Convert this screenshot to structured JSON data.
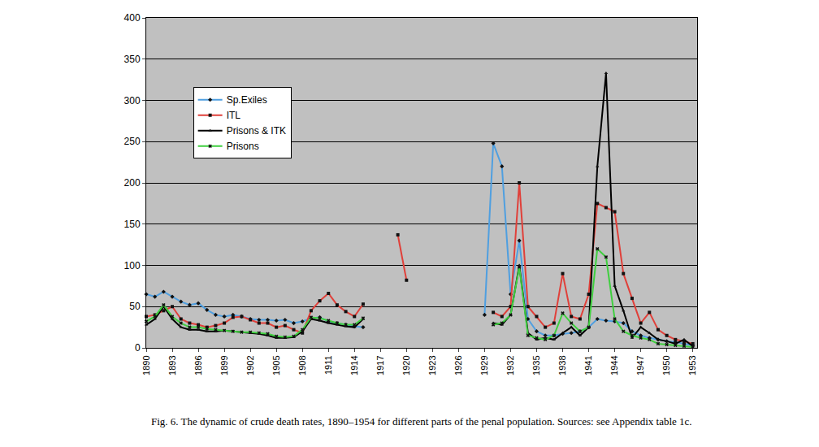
{
  "chart_data": {
    "type": "line",
    "title": "Fig. 6. The dynamic of crude death rates, 1890–1954 for different parts of the penal population. Sources: see Appendix table 1c.",
    "x": [
      1890,
      1891,
      1892,
      1893,
      1894,
      1895,
      1896,
      1897,
      1898,
      1899,
      1900,
      1901,
      1902,
      1903,
      1904,
      1905,
      1906,
      1907,
      1908,
      1909,
      1910,
      1911,
      1912,
      1913,
      1914,
      1915,
      1916,
      1917,
      1918,
      1919,
      1920,
      1921,
      1922,
      1923,
      1924,
      1925,
      1926,
      1927,
      1928,
      1929,
      1930,
      1931,
      1932,
      1933,
      1934,
      1935,
      1936,
      1937,
      1938,
      1939,
      1940,
      1941,
      1942,
      1943,
      1944,
      1945,
      1946,
      1947,
      1948,
      1949,
      1950,
      1951,
      1952,
      1953
    ],
    "series": [
      {
        "name": "Sp.Exiles",
        "color": "#4f9fe0",
        "marker": "diamond",
        "values": [
          65,
          62,
          68,
          62,
          56,
          52,
          54,
          46,
          40,
          38,
          40,
          38,
          35,
          34,
          34,
          33,
          34,
          30,
          32,
          36,
          37,
          32,
          30,
          28,
          26,
          25,
          null,
          null,
          null,
          null,
          null,
          null,
          null,
          null,
          null,
          null,
          null,
          null,
          null,
          40,
          248,
          220,
          65,
          130,
          35,
          20,
          15,
          15,
          17,
          18,
          20,
          25,
          35,
          33,
          32,
          30,
          20,
          15,
          12,
          10,
          8,
          7,
          5,
          3
        ]
      },
      {
        "name": "ITL",
        "color": "#e0403a",
        "marker": "square",
        "values": [
          38,
          40,
          45,
          50,
          35,
          30,
          28,
          25,
          27,
          30,
          37,
          38,
          34,
          30,
          30,
          25,
          27,
          22,
          18,
          45,
          57,
          66,
          52,
          44,
          38,
          53,
          null,
          null,
          null,
          137,
          82,
          null,
          null,
          null,
          null,
          null,
          null,
          null,
          null,
          null,
          43,
          38,
          50,
          200,
          50,
          38,
          25,
          30,
          90,
          38,
          35,
          65,
          175,
          170,
          165,
          90,
          60,
          30,
          43,
          22,
          15,
          10,
          8,
          5
        ]
      },
      {
        "name": "Prisons & ITK",
        "color": "#000000",
        "marker": "triangle-up",
        "values": [
          28,
          35,
          50,
          35,
          25,
          22,
          22,
          20,
          20,
          21,
          20,
          19,
          18,
          17,
          15,
          12,
          12,
          13,
          20,
          35,
          33,
          30,
          28,
          26,
          25,
          35,
          null,
          null,
          null,
          null,
          null,
          null,
          null,
          null,
          null,
          null,
          null,
          null,
          null,
          null,
          30,
          28,
          40,
          100,
          18,
          10,
          12,
          10,
          18,
          25,
          15,
          25,
          220,
          333,
          75,
          45,
          12,
          25,
          18,
          10,
          8,
          5,
          10,
          2
        ]
      },
      {
        "name": "Prisons",
        "color": "#3fcf3f",
        "marker": "x",
        "values": [
          32,
          38,
          52,
          38,
          30,
          25,
          25,
          23,
          22,
          21,
          20,
          19,
          19,
          18,
          17,
          14,
          13,
          14,
          22,
          37,
          36,
          33,
          30,
          28,
          28,
          36,
          null,
          null,
          null,
          null,
          null,
          null,
          null,
          null,
          null,
          null,
          null,
          null,
          null,
          null,
          28,
          30,
          40,
          98,
          15,
          12,
          10,
          15,
          42,
          30,
          20,
          25,
          120,
          110,
          35,
          20,
          15,
          12,
          10,
          5,
          4,
          3,
          2,
          1
        ]
      }
    ],
    "xlim": [
      1890,
      1953.5
    ],
    "xticks": [
      1890,
      1893,
      1896,
      1899,
      1902,
      1905,
      1908,
      1911,
      1914,
      1917,
      1920,
      1923,
      1926,
      1929,
      1932,
      1935,
      1938,
      1941,
      1944,
      1947,
      1950,
      1953
    ],
    "ylim": [
      0,
      400
    ],
    "yticks": [
      0,
      50,
      100,
      150,
      200,
      250,
      300,
      350,
      400
    ],
    "grid": "y",
    "legend": "upper left"
  }
}
